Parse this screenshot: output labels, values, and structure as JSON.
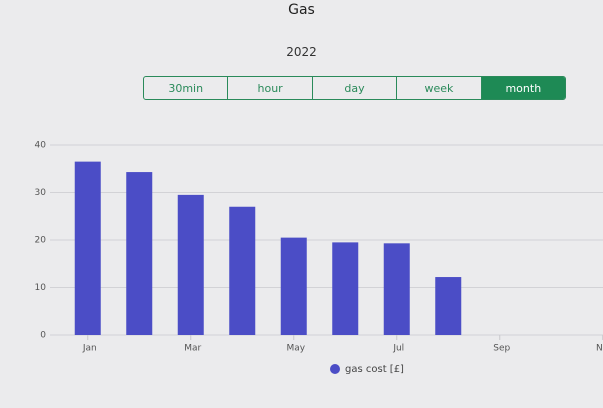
{
  "header": {
    "title": "Gas",
    "subtitle": "2022"
  },
  "tabs": [
    {
      "label": "30min",
      "selected": false
    },
    {
      "label": "hour",
      "selected": false
    },
    {
      "label": "day",
      "selected": false
    },
    {
      "label": "week",
      "selected": false
    },
    {
      "label": "month",
      "selected": true
    }
  ],
  "chart_data": {
    "type": "bar",
    "categories": [
      "Jan",
      null,
      "Mar",
      null,
      "May",
      null,
      "Jul",
      null,
      "Sep",
      null,
      "Nov",
      null
    ],
    "series": [
      {
        "name": "gas cost [£]",
        "color": "#4b4dc6",
        "values": [
          36.5,
          34.3,
          29.5,
          27,
          20.5,
          19.5,
          19.3,
          12.2,
          null,
          null,
          null,
          null
        ]
      }
    ],
    "ylim": [
      0,
      40
    ],
    "yticks": [
      0,
      10,
      20,
      30,
      40
    ],
    "grid": true
  }
}
